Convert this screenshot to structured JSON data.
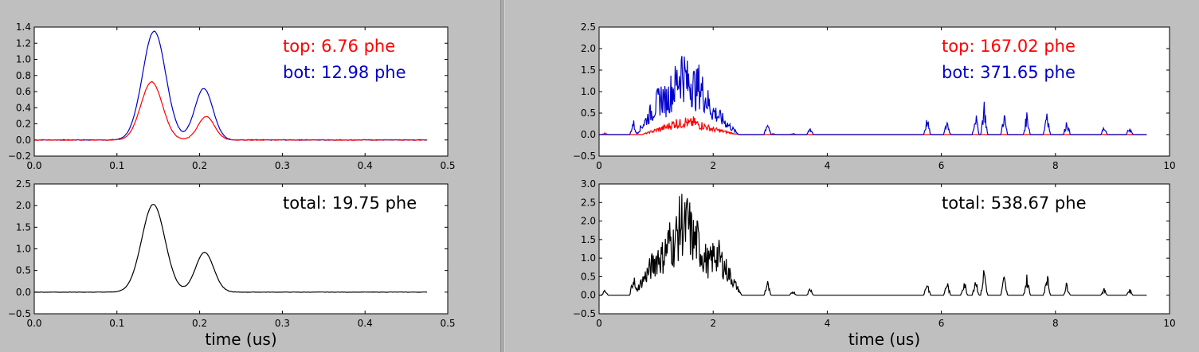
{
  "chart_data": [
    {
      "type": "line",
      "panel": "left",
      "subplot": "top",
      "xlim": [
        0.0,
        0.5
      ],
      "ylim": [
        -0.2,
        1.4
      ],
      "xticks": [
        "0.0",
        "0.1",
        "0.2",
        "0.3",
        "0.4",
        "0.5"
      ],
      "yticks": [
        "−0.2",
        "0.0",
        "0.2",
        "0.4",
        "0.6",
        "0.8",
        "1.0",
        "1.2",
        "1.4"
      ],
      "xlabel": "",
      "annotations": [
        {
          "text": "top: 6.76 phe",
          "color": "#ff0000"
        },
        {
          "text": "bot: 12.98 phe",
          "color": "#0000cc"
        }
      ],
      "series": [
        {
          "color": "#0000cc",
          "peaks": [
            {
              "x": 0.145,
              "h": 1.35,
              "w": 0.014
            },
            {
              "x": 0.205,
              "h": 0.64,
              "w": 0.011
            }
          ]
        },
        {
          "color": "#ff0000",
          "peaks": [
            {
              "x": 0.142,
              "h": 0.72,
              "w": 0.013
            },
            {
              "x": 0.208,
              "h": 0.29,
              "w": 0.01
            }
          ]
        }
      ]
    },
    {
      "type": "line",
      "panel": "left",
      "subplot": "bottom",
      "xlim": [
        0.0,
        0.5
      ],
      "ylim": [
        -0.5,
        2.5
      ],
      "xticks": [
        "0.0",
        "0.1",
        "0.2",
        "0.3",
        "0.4",
        "0.5"
      ],
      "yticks": [
        "−0.5",
        "0.0",
        "0.5",
        "1.0",
        "1.5",
        "2.0",
        "2.5"
      ],
      "xlabel": "time (us)",
      "annotations": [
        {
          "text": "total: 19.75 phe",
          "color": "#000000"
        }
      ],
      "series": [
        {
          "color": "#000000",
          "peaks": [
            {
              "x": 0.144,
              "h": 2.03,
              "w": 0.014
            },
            {
              "x": 0.206,
              "h": 0.92,
              "w": 0.011
            }
          ]
        }
      ]
    },
    {
      "type": "line",
      "panel": "right",
      "subplot": "top",
      "xlim": [
        0,
        10
      ],
      "ylim": [
        -0.5,
        2.5
      ],
      "xticks": [
        "0",
        "2",
        "4",
        "6",
        "8",
        "10"
      ],
      "yticks": [
        "−0.5",
        "0.0",
        "0.5",
        "1.0",
        "1.5",
        "2.0",
        "2.5"
      ],
      "xlabel": "",
      "annotations": [
        {
          "text": "top: 167.02 phe",
          "color": "#ff0000"
        },
        {
          "text": "bot: 371.65 phe",
          "color": "#0000cc"
        }
      ],
      "series": [
        {
          "color": "#ff0000",
          "scale": 0.45,
          "spikes": [
            [
              0.1,
              0.1
            ],
            [
              1.2,
              0.6
            ],
            [
              1.35,
              0.9
            ],
            [
              1.5,
              1.0
            ],
            [
              1.65,
              0.95
            ],
            [
              1.8,
              0.7
            ],
            [
              2.0,
              0.4
            ],
            [
              3.4,
              0.08
            ],
            [
              3.05,
              0.06
            ]
          ]
        },
        {
          "color": "#0000cc",
          "scale": 1.0,
          "spikes": [
            [
              0.6,
              0.4
            ],
            [
              1.1,
              1.3
            ],
            [
              1.3,
              1.6
            ],
            [
              1.45,
              2.25
            ],
            [
              1.6,
              1.9
            ],
            [
              1.75,
              1.7
            ],
            [
              1.9,
              1.0
            ],
            [
              2.0,
              0.8
            ],
            [
              2.95,
              0.4
            ],
            [
              3.7,
              0.2
            ],
            [
              5.75,
              0.45
            ],
            [
              6.1,
              0.4
            ],
            [
              6.6,
              0.6
            ],
            [
              6.75,
              0.9
            ],
            [
              7.1,
              0.6
            ],
            [
              7.5,
              0.6
            ],
            [
              7.85,
              0.75
            ],
            [
              8.2,
              0.4
            ],
            [
              8.85,
              0.2
            ],
            [
              9.3,
              0.2
            ]
          ]
        }
      ]
    },
    {
      "type": "line",
      "panel": "right",
      "subplot": "bottom",
      "xlim": [
        0,
        10
      ],
      "ylim": [
        -0.5,
        3.0
      ],
      "xticks": [
        "0",
        "2",
        "4",
        "6",
        "8",
        "10"
      ],
      "yticks": [
        "−0.5",
        "0.0",
        "0.5",
        "1.0",
        "1.5",
        "2.0",
        "2.5",
        "3.0"
      ],
      "xlabel": "time (us)",
      "annotations": [
        {
          "text": "total: 538.67 phe",
          "color": "#000000"
        }
      ],
      "series": [
        {
          "color": "#000000",
          "scale": 1.0,
          "spikes": [
            [
              0.1,
              0.15
            ],
            [
              0.6,
              0.75
            ],
            [
              1.05,
              1.6
            ],
            [
              1.25,
              2.2
            ],
            [
              1.45,
              2.95
            ],
            [
              1.55,
              2.85
            ],
            [
              1.7,
              2.2
            ],
            [
              1.85,
              1.5
            ],
            [
              2.05,
              1.7
            ],
            [
              2.95,
              0.45
            ],
            [
              3.4,
              0.15
            ],
            [
              3.7,
              0.25
            ],
            [
              5.75,
              0.45
            ],
            [
              6.1,
              0.45
            ],
            [
              6.4,
              0.5
            ],
            [
              6.6,
              0.6
            ],
            [
              6.75,
              0.9
            ],
            [
              7.1,
              0.6
            ],
            [
              7.5,
              0.6
            ],
            [
              7.85,
              0.75
            ],
            [
              8.2,
              0.4
            ],
            [
              8.85,
              0.2
            ],
            [
              9.3,
              0.2
            ]
          ]
        }
      ]
    }
  ]
}
